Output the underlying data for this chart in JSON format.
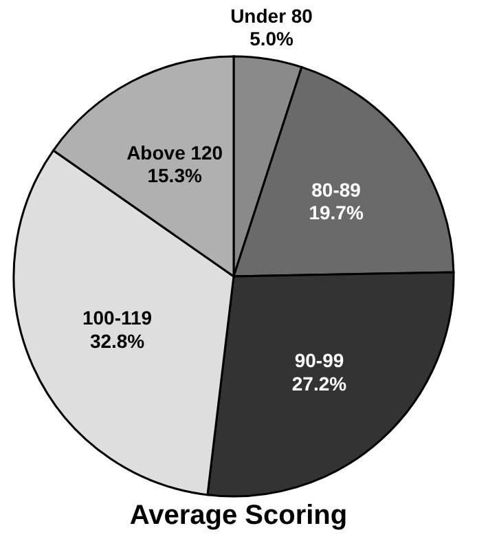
{
  "chart_data": {
    "type": "pie",
    "title": "Average Scoring",
    "categories": [
      "Under 80",
      "80-89",
      "90-99",
      "100-119",
      "Above 120"
    ],
    "values": [
      5.0,
      19.7,
      27.2,
      32.8,
      15.3
    ],
    "value_labels": [
      "5.0%",
      "19.7%",
      "27.2%",
      "32.8%",
      "15.3%"
    ],
    "colors": [
      "#8a8a8a",
      "#6a6a6a",
      "#333333",
      "#dedede",
      "#b0b0b0"
    ],
    "legend": false
  }
}
